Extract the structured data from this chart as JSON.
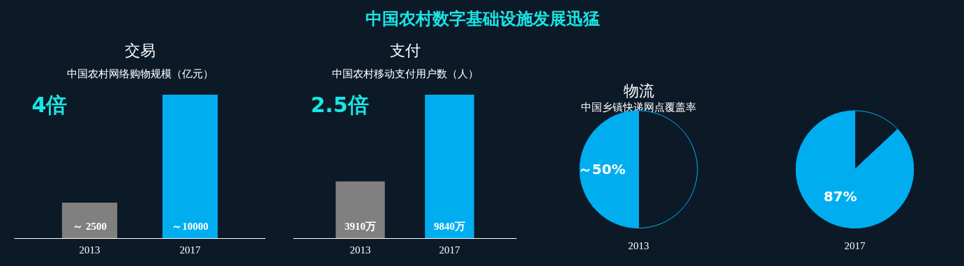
{
  "chart_data": [
    {
      "type": "other",
      "title": "中国农村数字基础设施发展迅猛"
    },
    {
      "type": "bar",
      "title": "交易",
      "subtitle": "中国农村网络购物规模（亿元）",
      "categories": [
        "2013",
        "2017"
      ],
      "values": [
        2500,
        10000
      ],
      "colors": [
        "#808080",
        "#00aeef"
      ],
      "value_labels": [
        "～ 2500",
        "～10000"
      ],
      "annotations": [
        "4倍"
      ]
    },
    {
      "type": "bar",
      "title": "支付",
      "subtitle": "中国农村移动支付用户数（人）",
      "categories": [
        "2013",
        "2017"
      ],
      "values": [
        3910,
        9840
      ],
      "colors": [
        "#808080",
        "#00aeef"
      ],
      "value_labels": [
        "3910万",
        "9840万"
      ],
      "annotations": [
        "2.5倍"
      ]
    },
    {
      "type": "pie",
      "title": "物流",
      "subtitle": "中国乡镇快递网点覆盖率",
      "xlabel": "2013",
      "categories": [
        null,
        null
      ],
      "values": [
        50,
        50
      ],
      "colors": [
        "#0c1a28",
        "#00aeef"
      ],
      "value_labels": [
        null,
        "～50%"
      ]
    },
    {
      "type": "pie",
      "xlabel": "2017",
      "categories": [
        null,
        null
      ],
      "values": [
        13,
        87
      ],
      "colors": [
        "#0c1a28",
        "#00aeef"
      ],
      "value_labels": [
        null,
        "87%"
      ]
    }
  ]
}
